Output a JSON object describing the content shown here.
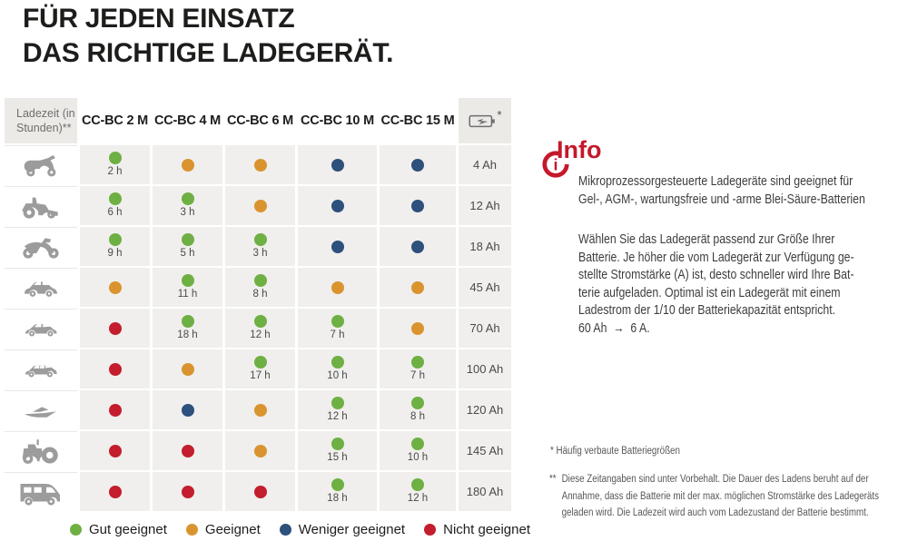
{
  "title": {
    "line1": "FÜR JEDEN EINSATZ",
    "line2": "DAS RICHTIGE LADEGERÄT."
  },
  "chart_data": {
    "type": "table",
    "title": "FÜR JEDEN EINSATZ DAS RICHTIGE LADEGERÄT.",
    "corner_label": "Ladezeit (in\nStunden)**",
    "columns": [
      "CC-BC 2 M",
      "CC-BC 4 M",
      "CC-BC 6 M",
      "CC-BC 10 M",
      "CC-BC 15 M"
    ],
    "battery_footnote_marker": "*",
    "status_colors": {
      "good": "#6EB043",
      "suitable": "#D9942F",
      "less": "#2D507C",
      "not": "#C41D2D"
    },
    "legend": [
      {
        "status": "good",
        "label": "Gut geeignet"
      },
      {
        "status": "suitable",
        "label": "Geeignet"
      },
      {
        "status": "less",
        "label": "Weniger geeignet"
      },
      {
        "status": "not",
        "label": "Nicht geeignet"
      }
    ],
    "rows": [
      {
        "vehicle": "scooter",
        "capacity": "4 Ah",
        "cells": [
          {
            "status": "good",
            "time": "2 h"
          },
          {
            "status": "suitable"
          },
          {
            "status": "suitable"
          },
          {
            "status": "less"
          },
          {
            "status": "less"
          }
        ]
      },
      {
        "vehicle": "mower",
        "capacity": "12 Ah",
        "cells": [
          {
            "status": "good",
            "time": "6 h"
          },
          {
            "status": "good",
            "time": "3 h"
          },
          {
            "status": "suitable"
          },
          {
            "status": "less"
          },
          {
            "status": "less"
          }
        ]
      },
      {
        "vehicle": "motorcycle",
        "capacity": "18 Ah",
        "cells": [
          {
            "status": "good",
            "time": "9 h"
          },
          {
            "status": "good",
            "time": "5 h"
          },
          {
            "status": "good",
            "time": "3 h"
          },
          {
            "status": "less"
          },
          {
            "status": "less"
          }
        ]
      },
      {
        "vehicle": "small-car",
        "capacity": "45 Ah",
        "cells": [
          {
            "status": "suitable"
          },
          {
            "status": "good",
            "time": "11 h"
          },
          {
            "status": "good",
            "time": "8 h"
          },
          {
            "status": "suitable"
          },
          {
            "status": "suitable"
          }
        ]
      },
      {
        "vehicle": "sedan",
        "capacity": "70 Ah",
        "cells": [
          {
            "status": "not"
          },
          {
            "status": "good",
            "time": "18 h"
          },
          {
            "status": "good",
            "time": "12 h"
          },
          {
            "status": "good",
            "time": "7 h"
          },
          {
            "status": "suitable"
          }
        ]
      },
      {
        "vehicle": "limousine",
        "capacity": "100 Ah",
        "cells": [
          {
            "status": "not"
          },
          {
            "status": "suitable"
          },
          {
            "status": "good",
            "time": "17 h"
          },
          {
            "status": "good",
            "time": "10 h"
          },
          {
            "status": "good",
            "time": "7 h"
          }
        ]
      },
      {
        "vehicle": "boat",
        "capacity": "120 Ah",
        "cells": [
          {
            "status": "not"
          },
          {
            "status": "less"
          },
          {
            "status": "suitable"
          },
          {
            "status": "good",
            "time": "12 h"
          },
          {
            "status": "good",
            "time": "8 h"
          }
        ]
      },
      {
        "vehicle": "tractor",
        "capacity": "145 Ah",
        "cells": [
          {
            "status": "not"
          },
          {
            "status": "not"
          },
          {
            "status": "suitable"
          },
          {
            "status": "good",
            "time": "15 h"
          },
          {
            "status": "good",
            "time": "10 h"
          }
        ]
      },
      {
        "vehicle": "camper",
        "capacity": "180 Ah",
        "cells": [
          {
            "status": "not"
          },
          {
            "status": "not"
          },
          {
            "status": "not"
          },
          {
            "status": "good",
            "time": "18 h"
          },
          {
            "status": "good",
            "time": "12 h"
          }
        ]
      }
    ]
  },
  "info": {
    "heading": "Info",
    "paragraph1": "Mikroprozessorgesteuerte Ladegeräte sind geeignet für\nGel-, AGM-, wartungsfreie und -arme Blei-Säure-Batterien",
    "paragraph2": "Wählen Sie das Ladegerät passend zur Größe Ihrer\nBatterie. Je höher die vom Ladegerät zur Verfügung ge-\nstellte Stromstärke (A) ist, desto schneller wird Ihre Bat-\nterie aufgeladen. Optimal ist ein Ladegerät mit einem\nLadestrom der 1/10 der Batteriekapazität entspricht.\n60 Ah  →  6 A."
  },
  "footnotes": {
    "first": "* Häufig verbaute Batteriegrößen",
    "second_marker": "**",
    "second": "Diese Zeitangaben sind unter Vorbehalt. Die Dauer des Ladens beruht auf der\nAnnahme, dass die Batterie mit der max. möglichen Stromstärke des Ladegeräts\ngeladen wird. Die Ladezeit wird auch vom Ladezustand der Batterie bestimmt."
  }
}
